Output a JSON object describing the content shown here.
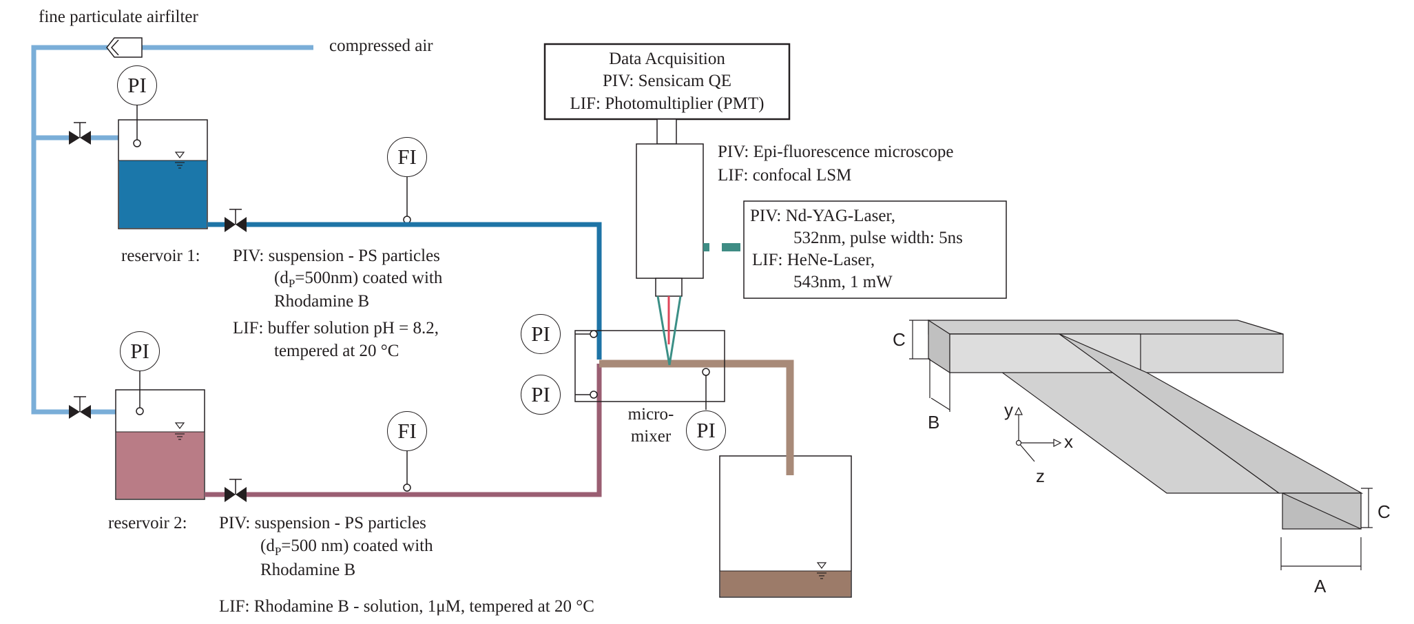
{
  "labels": {
    "airfilter": "fine particulate airfilter",
    "compressed_air": "compressed air",
    "daq_title": "Data Acquisition",
    "daq_piv": "PIV: Sensicam QE",
    "daq_lif": "LIF: Photomultiplier (PMT)",
    "microscope_piv": "PIV: Epi-fluorescence microscope",
    "microscope_lif": "LIF: confocal LSM",
    "laser_piv_1": "PIV: Nd-YAG-Laser,",
    "laser_piv_2": "532nm, pulse width: 5ns",
    "laser_lif_1": "LIF:  HeNe-Laser,",
    "laser_lif_2": "543nm, 1 mW",
    "reservoir1": "reservoir 1:",
    "res1_piv_1": "PIV:  suspension - PS particles",
    "res1_piv_2_a": "(d",
    "res1_piv_2_sub": "P",
    "res1_piv_2_b": "=500nm) coated with",
    "res1_piv_3": "Rhodamine B",
    "res1_lif_1": "LIF:  buffer solution pH = 8.2,",
    "res1_lif_2": "tempered at 20 °C",
    "reservoir2": "reservoir 2:",
    "res2_piv_1": "PIV:  suspension - PS particles",
    "res2_piv_2_a": "(d",
    "res2_piv_2_sub": "P",
    "res2_piv_2_b": "=500 nm) coated with",
    "res2_piv_3": "Rhodamine B",
    "res2_lif": "LIF: Rhodamine B - solution, 1μM,  tempered at 20 °C",
    "micromixer_1": "micro-",
    "micromixer_2": "mixer",
    "pi": "PI",
    "fi": "FI",
    "dim_a": "A",
    "dim_b": "B",
    "dim_c": "C",
    "axis_x": "x",
    "axis_y": "y",
    "axis_z": "z"
  },
  "colors": {
    "air_line": "#7aaed8",
    "line_blue": "#1e74a6",
    "line_pink": "#9a5e72",
    "line_brown": "#a88a78",
    "fluid_blue": "#1b77aa",
    "fluid_pink": "#b97c86",
    "fluid_brown": "#9c7b69",
    "laser_dash": "#3e8c84",
    "cone_green": "#3b8f86",
    "cone_red": "#e0465a",
    "channel_top": "#d8d8d8",
    "channel_side": "#c2c2c2"
  }
}
